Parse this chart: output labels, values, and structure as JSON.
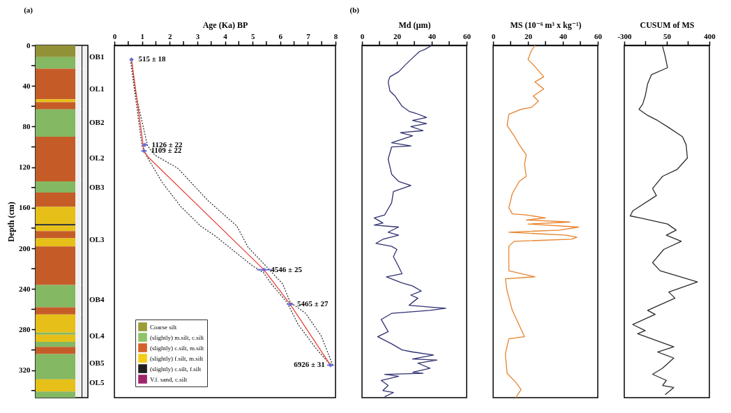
{
  "chart_data": [
    {
      "type": "bar",
      "stacked": true,
      "categories": [
        null
      ],
      "ylabel": "Depth (cm)",
      "ylim": [
        347,
        0
      ],
      "yticks": [
        0,
        {
          "value": 20,
          "label": null
        },
        40,
        {
          "value": 60,
          "label": null
        },
        80,
        {
          "value": 100,
          "label": null
        },
        120,
        {
          "value": 140,
          "label": null
        },
        160,
        {
          "value": 180,
          "label": null
        },
        200,
        {
          "value": 220,
          "label": null
        },
        240,
        {
          "value": 260,
          "label": null
        },
        280,
        {
          "value": 300,
          "label": null
        },
        320,
        {
          "value": 340,
          "label": null
        }
      ],
      "tick_labels": "y",
      "legend": "bottom right",
      "annotations": [
        "(a)"
      ],
      "bands": [
        {
          "axis": "y",
          "from": 0,
          "to": 23,
          "label": "OB1"
        },
        {
          "axis": "y",
          "from": 23,
          "to": 63,
          "label": "OL1"
        },
        {
          "axis": "y",
          "from": 63,
          "to": 90,
          "label": "OB2"
        },
        {
          "axis": "y",
          "from": 90,
          "to": 133,
          "label": "OL2"
        },
        {
          "axis": "y",
          "from": 133,
          "to": 147,
          "label": "OB3"
        },
        {
          "axis": "y",
          "from": 147,
          "to": 236,
          "label": "OL3"
        },
        {
          "axis": "y",
          "from": 236,
          "to": 265,
          "label": "OB4"
        },
        {
          "axis": "y",
          "from": 265,
          "to": 308,
          "label": "OL4"
        },
        {
          "axis": "y",
          "from": 308,
          "to": 318,
          "label": "OB5"
        },
        {
          "axis": "y",
          "from": 318,
          "to": 347,
          "label": "OL5"
        }
      ],
      "series": [
        {
          "name": "Coarse silt",
          "color": "#9b9b3b",
          "values": [
            11.5
          ]
        },
        {
          "name": "(slightly) m.silt, c.silt",
          "color": "#8dc46a",
          "values": [
            11.5
          ]
        },
        {
          "name": "(slightly) c.silt, m.silt",
          "color": "#d2622b",
          "values": [
            30
          ]
        },
        {
          "name": "(slightly) f.silt, m.silt",
          "color": "#f5cc1a",
          "values": [
            3
          ]
        },
        {
          "color": "#d2622b",
          "values": [
            7
          ]
        },
        {
          "color": "#8dc46a",
          "values": [
            27
          ]
        },
        {
          "color": "#d2622b",
          "values": [
            44
          ]
        },
        {
          "color": "#8dc46a",
          "values": [
            11
          ]
        },
        {
          "color": "#d2622b",
          "values": [
            14
          ]
        },
        {
          "color": "#f5cc1a",
          "values": [
            17
          ]
        },
        {
          "name": "(slightly) c.silt, f.silt",
          "color": "#1f1f1f",
          "values": [
            1.5
          ]
        },
        {
          "color": "#f5cc1a",
          "values": [
            5.5
          ]
        },
        {
          "color": "#d2622b",
          "values": [
            7
          ]
        },
        {
          "color": "#f5cc1a",
          "values": [
            8
          ]
        },
        {
          "color": "#d2622b",
          "values": [
            38
          ]
        },
        {
          "color": "#8dc46a",
          "values": [
            22
          ]
        },
        {
          "color": "#d2622b",
          "values": [
            7
          ]
        },
        {
          "color": "#f5cc1a",
          "values": [
            18
          ]
        },
        {
          "color": "#8dc46a",
          "values": [
            2
          ]
        },
        {
          "color": "#f5cc1a",
          "values": [
            7
          ]
        },
        {
          "color": "#8dc46a",
          "values": [
            5
          ]
        },
        {
          "color": "#d2622b",
          "values": [
            7
          ]
        },
        {
          "color": "#8dc46a",
          "values": [
            25
          ]
        },
        {
          "color": "#f5cc1a",
          "values": [
            12
          ]
        },
        {
          "color": "#8dc46a",
          "values": [
            6
          ]
        },
        {
          "name": "V.f. sand, c.silt",
          "color": "#a0246a",
          "values": [
            0
          ]
        }
      ]
    },
    {
      "type": "line",
      "xlabel": "Age (Ka) BP",
      "xlim": [
        0,
        8
      ],
      "xticks": [
        0,
        {
          "value": 0.5,
          "label": null
        },
        1,
        {
          "value": 1.5,
          "label": null
        },
        2,
        {
          "value": 2.5,
          "label": null
        },
        3,
        {
          "value": 3.5,
          "label": null
        },
        4,
        {
          "value": 4.5,
          "label": null
        },
        5,
        {
          "value": 5.5,
          "label": null
        },
        6,
        {
          "value": 6.5,
          "label": null
        },
        7,
        {
          "value": 7.5,
          "label": null
        },
        8
      ],
      "ylim": [
        347,
        0
      ],
      "tick_labels": "x",
      "annotations": [
        {
          "text": "515 ± 18",
          "x": 0.62,
          "y": 14
        },
        {
          "text": "1126 ± 22",
          "x": 1.1,
          "y": 98
        },
        {
          "text": "1109 ± 22",
          "x": 1.07,
          "y": 104
        },
        {
          "text": "4546 ± 25",
          "x": 5.41,
          "y": 221
        },
        {
          "text": "5465 ± 27",
          "x": 6.36,
          "y": 255
        },
        {
          "text": "6926 ± 31",
          "x": 7.82,
          "y": 315
        }
      ],
      "series": [
        {
          "color": "#333333",
          "line_style": "dotted",
          "x": [
            0.58,
            1.0,
            1.14,
            1.73,
            2.41,
            3.12,
            3.66,
            4.99,
            5.4,
            5.68,
            6.24,
            6.65,
            7.28,
            7.82
          ],
          "values": [
            14,
            99,
            108,
            135,
            159,
            178,
            188,
            217,
            224,
            235,
            253,
            275,
            298,
            315
          ]
        },
        {
          "color": "#333333",
          "line_style": "dotted",
          "x": [
            0.62,
            0.75,
            1.2,
            1.46,
            2.29,
            3.39,
            4.43,
            4.84,
            5.47,
            6.09,
            6.36,
            6.92,
            7.48,
            7.9
          ],
          "values": [
            14,
            45,
            99,
            108,
            121,
            153,
            178,
            199,
            217,
            235,
            253,
            264,
            286,
            315
          ]
        },
        {
          "color": "#e8413a",
          "x": [
            0.62,
            1.07,
            1.22,
            5.41,
            6.36,
            7.82
          ],
          "values": [
            14,
            104,
            110,
            221,
            255,
            315
          ]
        },
        {
          "type": "scatter",
          "color": "#6b6bd0",
          "marker": "diamond",
          "x": [
            0.62,
            1.1,
            1.07,
            5.41,
            6.36,
            7.82
          ],
          "values": [
            14,
            98,
            104,
            221,
            255,
            315
          ],
          "xerrors": [
            0.06,
            0.1,
            0.1,
            0.25,
            0.12,
            0.12
          ]
        }
      ]
    },
    {
      "type": "line",
      "xlabel": "Md (µm)",
      "xlim": [
        0,
        60
      ],
      "xticks": [
        0,
        {
          "value": 10,
          "label": null
        },
        20,
        {
          "value": 30,
          "label": null
        },
        40,
        {
          "value": 50,
          "label": null
        },
        60
      ],
      "ylim": [
        347,
        0
      ],
      "tick_labels": "x",
      "annotations": [
        "(b)"
      ],
      "series": [
        {
          "color": "#2e3070",
          "x": [
            40,
            36,
            33,
            28,
            25,
            21,
            16,
            15,
            16,
            19,
            23,
            27,
            31,
            37,
            29,
            37,
            28,
            35,
            22,
            29,
            17,
            28,
            17,
            15,
            17,
            21,
            28,
            18,
            17,
            13,
            7,
            12,
            7,
            21,
            15,
            21,
            12,
            8,
            17,
            20,
            18,
            21,
            23,
            14,
            23,
            29,
            34,
            28,
            32,
            27,
            40,
            48,
            39,
            17,
            11,
            15,
            9,
            17,
            23,
            29,
            41,
            29,
            43,
            32,
            39,
            29,
            35,
            13,
            21,
            11,
            15,
            12,
            18,
            13
          ],
          "values": [
            0,
            4,
            6,
            14,
            19,
            26,
            31,
            36,
            45,
            50,
            60,
            65,
            67,
            71,
            74,
            77,
            80,
            84,
            86,
            89,
            96,
            99,
            100,
            112,
            127,
            134,
            138,
            144,
            155,
            167,
            170,
            175,
            177,
            179,
            184,
            187,
            191,
            195,
            198,
            201,
            208,
            218,
            225,
            228,
            234,
            237,
            242,
            246,
            249,
            256,
            258,
            259,
            261,
            264,
            270,
            282,
            287,
            294,
            300,
            302,
            305,
            309,
            310,
            313,
            318,
            322,
            323,
            324,
            326,
            330,
            335,
            340,
            342,
            346
          ]
        }
      ]
    },
    {
      "type": "line",
      "xlabel": "MS (10⁻⁶ m³ x kg⁻¹)",
      "xlim": [
        0,
        60
      ],
      "xticks": [
        0,
        {
          "value": 10,
          "label": null
        },
        20,
        {
          "value": 30,
          "label": null
        },
        40,
        {
          "value": 50,
          "label": null
        },
        60
      ],
      "ylim": [
        347,
        0
      ],
      "tick_labels": "x",
      "series": [
        {
          "color": "#e8822a",
          "x": [
            24,
            22,
            20,
            23,
            29,
            24,
            29,
            23,
            26,
            22,
            16,
            9,
            8,
            12,
            15,
            19,
            18,
            19,
            15,
            11,
            9,
            11,
            19,
            30,
            19,
            44,
            20,
            49,
            38,
            9,
            42,
            48,
            45,
            12,
            9,
            9,
            24,
            7,
            8,
            11,
            18,
            9,
            7,
            8,
            13,
            16,
            13
          ],
          "values": [
            0,
            5,
            14,
            19,
            31,
            36,
            43,
            50,
            55,
            61,
            63,
            68,
            79,
            89,
            98,
            108,
            117,
            129,
            134,
            146,
            160,
            166,
            167,
            170,
            172,
            174,
            176,
            179,
            182,
            184,
            187,
            189,
            191,
            193,
            198,
            222,
            228,
            230,
            242,
            261,
            287,
            289,
            304,
            323,
            332,
            339,
            347
          ]
        }
      ]
    },
    {
      "type": "line",
      "xlabel": "CUSUM of MS",
      "xlim": [
        -300,
        400
      ],
      "xticks": [
        -300,
        {
          "value": -125,
          "label": null
        },
        50,
        {
          "value": 225,
          "label": null
        },
        400
      ],
      "ylim": [
        347,
        0
      ],
      "tick_labels": "x",
      "series": [
        {
          "color": "#2b2b2b",
          "x": [
            15,
            35,
            56,
            -77,
            -108,
            -128,
            -149,
            -179,
            -108,
            -26,
            66,
            179,
            209,
            219,
            137,
            15,
            -67,
            -36,
            -230,
            -251,
            -169,
            56,
            127,
            46,
            169,
            25,
            -67,
            -5,
            302,
            66,
            117,
            -108,
            -46,
            -230,
            -128,
            -190,
            107,
            -26,
            107,
            15,
            -67,
            46,
            15,
            107,
            36
          ],
          "values": [
            1,
            10,
            22,
            29,
            38,
            50,
            58,
            63,
            69,
            74,
            81,
            90,
            98,
            111,
            122,
            129,
            141,
            148,
            163,
            168,
            170,
            176,
            182,
            187,
            193,
            201,
            214,
            222,
            233,
            243,
            249,
            261,
            265,
            275,
            281,
            284,
            297,
            302,
            308,
            318,
            324,
            330,
            335,
            337,
            344
          ]
        }
      ]
    }
  ]
}
